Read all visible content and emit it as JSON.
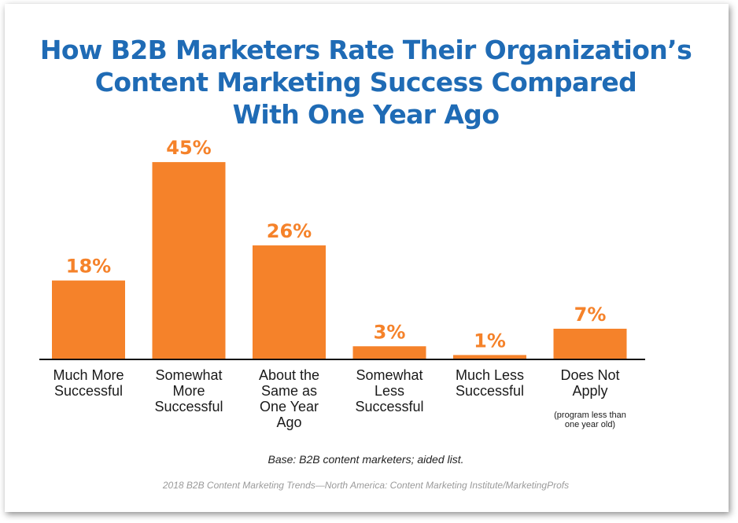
{
  "colors": {
    "title": "#1f6bb5",
    "bar": "#f5822a",
    "label": "#f5822a",
    "axis": "#111111"
  },
  "chart_data": {
    "type": "bar",
    "title_lines": [
      "How B2B Marketers Rate Their Organization’s",
      "Content Marketing Success Compared",
      "With One Year Ago"
    ],
    "categories": [
      [
        "Much More",
        "Successful"
      ],
      [
        "Somewhat",
        "More",
        "Successful"
      ],
      [
        "About the",
        "Same as",
        "One Year",
        "Ago"
      ],
      [
        "Somewhat",
        "Less",
        "Successful"
      ],
      [
        "Much Less",
        "Successful"
      ],
      [
        "Does Not",
        "Apply"
      ]
    ],
    "category_notes": [
      "",
      "",
      "",
      "",
      "",
      [
        "(program less than",
        "one year old)"
      ]
    ],
    "values": [
      18,
      45,
      26,
      3,
      1,
      7
    ],
    "value_labels": [
      "18%",
      "45%",
      "26%",
      "3%",
      "1%",
      "7%"
    ],
    "ylim": [
      0,
      50
    ],
    "grid": false,
    "legend": "none",
    "base_note": "Base: B2B content marketers; aided list.",
    "source": "2018 B2B Content Marketing Trends—North America: Content Marketing Institute/MarketingProfs"
  }
}
